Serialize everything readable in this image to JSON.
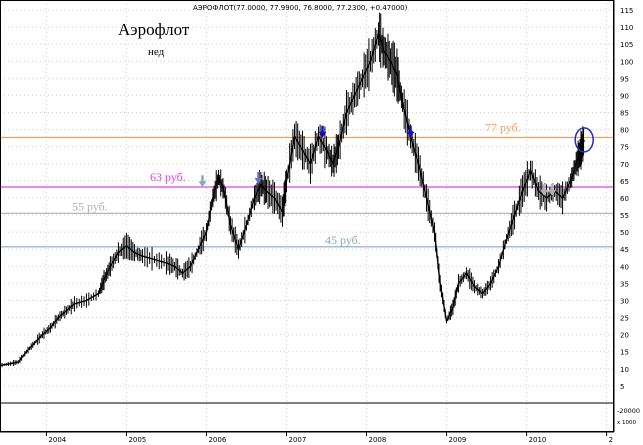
{
  "chart_data": {
    "type": "line",
    "title": "Аэрофлот",
    "subtitle": "нед",
    "header": "АЭРОФЛОТ(77.0000, 77.9900, 76.8000, 77.2300, +0.47000)",
    "y_axis": {
      "ylim": [
        0,
        115
      ],
      "ticks": [
        5,
        10,
        15,
        20,
        25,
        30,
        35,
        40,
        45,
        50,
        55,
        60,
        65,
        70,
        75,
        80,
        85,
        90,
        95,
        100,
        105,
        110,
        115
      ],
      "volume_labels": [
        "-20000",
        "x 1000"
      ]
    },
    "x_axis": {
      "labels": [
        "2004",
        "2005",
        "2006",
        "2007",
        "2008",
        "2009",
        "2010",
        "2"
      ],
      "positions": [
        2004.0,
        2005.0,
        2006.0,
        2007.0,
        2008.0,
        2009.0,
        2010.0,
        2011.0
      ],
      "xlim": [
        2003.42,
        2011.08
      ]
    },
    "levels": [
      {
        "label": "77 руб.",
        "value": 77.7,
        "color": "#f0a060"
      },
      {
        "label": "63 руб.",
        "value": 63.2,
        "color": "#e040e0"
      },
      {
        "label": "55 руб.",
        "value": 55.5,
        "color": "#b0b0b0"
      },
      {
        "label": "45 руб.",
        "value": 45.7,
        "color": "#8aa8c8"
      }
    ],
    "arrows": [
      {
        "x": 2005.95,
        "y": 64,
        "color": "#8aa8c8"
      },
      {
        "x": 2006.65,
        "y": 65,
        "color": "#7070c0"
      },
      {
        "x": 2007.45,
        "y": 78.5,
        "color": "#1010c0"
      },
      {
        "x": 2008.55,
        "y": 78.5,
        "color": "#1010c0"
      },
      {
        "x": 2010.22,
        "y": 61.5,
        "color": "#b0b0b0"
      },
      {
        "x": 2010.32,
        "y": 61.5,
        "color": "#b0b0b0"
      }
    ],
    "highlight": {
      "x": 2010.72,
      "y": 77.0
    },
    "series": [
      {
        "values": [
          [
            2003.42,
            11
          ],
          [
            2003.55,
            11.5
          ],
          [
            2003.65,
            12
          ],
          [
            2003.75,
            15
          ],
          [
            2003.85,
            17.5
          ],
          [
            2003.95,
            20
          ],
          [
            2004.05,
            22
          ],
          [
            2004.15,
            25
          ],
          [
            2004.25,
            27
          ],
          [
            2004.35,
            29
          ],
          [
            2004.5,
            30
          ],
          [
            2004.65,
            32
          ],
          [
            2004.72,
            36
          ],
          [
            2004.8,
            40
          ],
          [
            2004.9,
            44
          ],
          [
            2005.0,
            46
          ],
          [
            2005.1,
            44
          ],
          [
            2005.2,
            43
          ],
          [
            2005.35,
            42
          ],
          [
            2005.5,
            41
          ],
          [
            2005.6,
            40
          ],
          [
            2005.7,
            38
          ],
          [
            2005.8,
            40
          ],
          [
            2005.9,
            45
          ],
          [
            2006.0,
            50
          ],
          [
            2006.08,
            60
          ],
          [
            2006.15,
            66
          ],
          [
            2006.22,
            62
          ],
          [
            2006.3,
            52
          ],
          [
            2006.4,
            45
          ],
          [
            2006.5,
            52
          ],
          [
            2006.6,
            60
          ],
          [
            2006.68,
            64
          ],
          [
            2006.75,
            62
          ],
          [
            2006.85,
            60
          ],
          [
            2006.95,
            56
          ],
          [
            2007.0,
            65
          ],
          [
            2007.1,
            78
          ],
          [
            2007.2,
            74
          ],
          [
            2007.3,
            70
          ],
          [
            2007.4,
            78
          ],
          [
            2007.5,
            74
          ],
          [
            2007.58,
            70
          ],
          [
            2007.65,
            75
          ],
          [
            2007.75,
            85
          ],
          [
            2007.85,
            90
          ],
          [
            2007.95,
            95
          ],
          [
            2008.05,
            100
          ],
          [
            2008.15,
            108
          ],
          [
            2008.22,
            103
          ],
          [
            2008.3,
            100
          ],
          [
            2008.38,
            96
          ],
          [
            2008.45,
            88
          ],
          [
            2008.55,
            78
          ],
          [
            2008.65,
            70
          ],
          [
            2008.75,
            60
          ],
          [
            2008.85,
            50
          ],
          [
            2008.92,
            35
          ],
          [
            2009.0,
            24
          ],
          [
            2009.08,
            28
          ],
          [
            2009.15,
            35
          ],
          [
            2009.25,
            38
          ],
          [
            2009.35,
            34
          ],
          [
            2009.45,
            32
          ],
          [
            2009.55,
            35
          ],
          [
            2009.65,
            40
          ],
          [
            2009.75,
            48
          ],
          [
            2009.85,
            55
          ],
          [
            2009.95,
            62
          ],
          [
            2010.05,
            68
          ],
          [
            2010.15,
            62
          ],
          [
            2010.25,
            60
          ],
          [
            2010.35,
            62
          ],
          [
            2010.45,
            60
          ],
          [
            2010.55,
            65
          ],
          [
            2010.62,
            70
          ],
          [
            2010.68,
            74
          ],
          [
            2010.72,
            77
          ]
        ]
      }
    ]
  }
}
